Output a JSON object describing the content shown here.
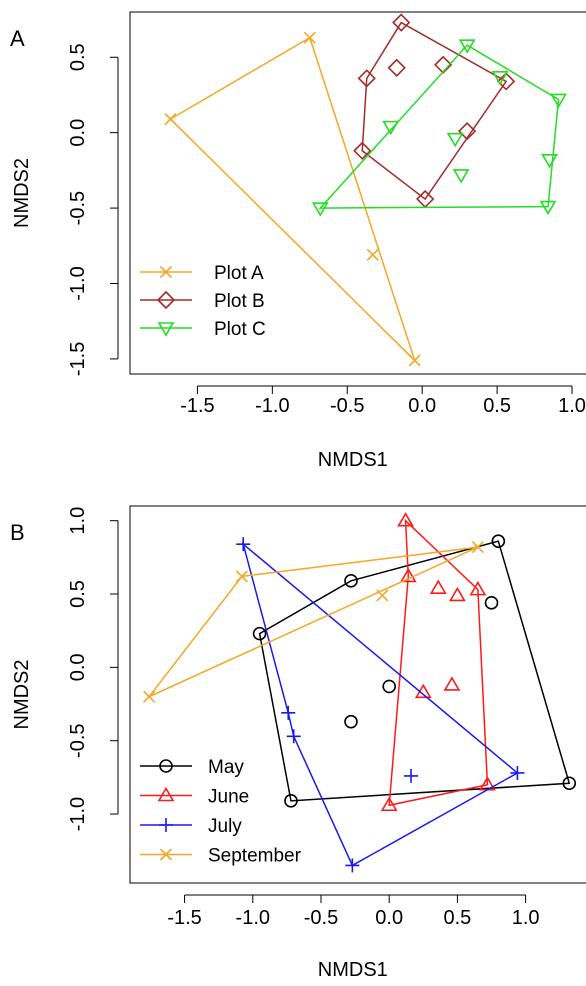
{
  "chart_data": [
    {
      "panel_label": "A",
      "type": "scatter",
      "xlabel": "NMDS1",
      "ylabel": "NMDS2",
      "xlim": [
        -1.95,
        1.1
      ],
      "ylim": [
        -1.6,
        0.8
      ],
      "xticks": [
        -1.5,
        -1.0,
        -0.5,
        0.0,
        0.5,
        1.0
      ],
      "yticks": [
        -1.5,
        -1.0,
        -0.5,
        0.0,
        0.5
      ],
      "xtick_labels": [
        "-1.5",
        "-1.0",
        "-0.5",
        "0.0",
        "0.5",
        "1.0"
      ],
      "ytick_labels": [
        "-1.5",
        "-1.0",
        "-0.5",
        "0.0",
        "0.5"
      ],
      "legend_position": "bottom-left",
      "series": [
        {
          "name": "Plot A",
          "color": "#f5a623",
          "marker": "x-cross",
          "points": [
            [
              -0.75,
              0.63
            ],
            [
              -1.68,
              0.09
            ],
            [
              -0.05,
              -1.51
            ],
            [
              -0.33,
              -0.81
            ]
          ],
          "hull": [
            [
              -0.75,
              0.63
            ],
            [
              -1.68,
              0.09
            ],
            [
              -0.05,
              -1.51
            ]
          ]
        },
        {
          "name": "Plot B",
          "color": "#a52a2a",
          "marker": "diamond",
          "points": [
            [
              -0.14,
              0.73
            ],
            [
              -0.37,
              0.36
            ],
            [
              -0.17,
              0.43
            ],
            [
              0.14,
              0.45
            ],
            [
              0.56,
              0.34
            ],
            [
              0.3,
              0.01
            ],
            [
              -0.4,
              -0.12
            ],
            [
              0.02,
              -0.44
            ]
          ],
          "hull": [
            [
              -0.14,
              0.73
            ],
            [
              0.56,
              0.34
            ],
            [
              0.02,
              -0.44
            ],
            [
              -0.4,
              -0.12
            ],
            [
              -0.37,
              0.36
            ]
          ]
        },
        {
          "name": "Plot C",
          "color": "#22dd22",
          "marker": "triangle-down",
          "points": [
            [
              0.3,
              0.58
            ],
            [
              0.52,
              0.37
            ],
            [
              0.91,
              0.22
            ],
            [
              -0.21,
              0.04
            ],
            [
              0.22,
              -0.04
            ],
            [
              0.85,
              -0.18
            ],
            [
              0.26,
              -0.28
            ],
            [
              0.84,
              -0.49
            ],
            [
              -0.68,
              -0.5
            ]
          ],
          "hull": [
            [
              0.3,
              0.58
            ],
            [
              0.91,
              0.22
            ],
            [
              0.84,
              -0.49
            ],
            [
              -0.68,
              -0.5
            ]
          ]
        }
      ]
    },
    {
      "panel_label": "B",
      "type": "scatter",
      "xlabel": "NMDS1",
      "ylabel": "NMDS2",
      "xlim": [
        -1.9,
        1.45
      ],
      "ylim": [
        -1.47,
        1.1
      ],
      "xticks": [
        -1.5,
        -1.0,
        -0.5,
        0.0,
        0.5,
        1.0
      ],
      "yticks": [
        -1.0,
        -0.5,
        0.0,
        0.5,
        1.0
      ],
      "xtick_labels": [
        "-1.5",
        "-1.0",
        "-0.5",
        "0.0",
        "0.5",
        "1.0"
      ],
      "ytick_labels": [
        "-1.0",
        "-0.5",
        "0.0",
        "0.5",
        "1.0"
      ],
      "legend_position": "bottom-left",
      "series": [
        {
          "name": "May",
          "color": "#000000",
          "marker": "circle",
          "points": [
            [
              0.8,
              0.86
            ],
            [
              -0.28,
              0.59
            ],
            [
              -0.95,
              0.23
            ],
            [
              0.75,
              0.44
            ],
            [
              0.0,
              -0.13
            ],
            [
              -0.28,
              -0.37
            ],
            [
              -0.72,
              -0.91
            ],
            [
              1.32,
              -0.79
            ]
          ],
          "hull": [
            [
              0.8,
              0.86
            ],
            [
              1.32,
              -0.79
            ],
            [
              -0.72,
              -0.91
            ],
            [
              -0.95,
              0.23
            ],
            [
              -0.28,
              0.59
            ]
          ]
        },
        {
          "name": "June",
          "color": "#ff1a1a",
          "marker": "triangle-up",
          "points": [
            [
              0.12,
              1.0
            ],
            [
              0.14,
              0.62
            ],
            [
              0.36,
              0.54
            ],
            [
              0.5,
              0.49
            ],
            [
              0.65,
              0.53
            ],
            [
              0.25,
              -0.17
            ],
            [
              0.46,
              -0.12
            ],
            [
              0.72,
              -0.8
            ],
            [
              0.0,
              -0.94
            ]
          ],
          "hull": [
            [
              0.12,
              1.0
            ],
            [
              0.65,
              0.53
            ],
            [
              0.72,
              -0.8
            ],
            [
              0.0,
              -0.94
            ],
            [
              0.14,
              0.62
            ]
          ]
        },
        {
          "name": "July",
          "color": "#1a1aee",
          "marker": "plus",
          "points": [
            [
              -1.07,
              0.84
            ],
            [
              -0.74,
              -0.31
            ],
            [
              -0.7,
              -0.47
            ],
            [
              0.16,
              -0.74
            ],
            [
              0.94,
              -0.72
            ],
            [
              -0.27,
              -1.35
            ]
          ],
          "hull": [
            [
              -1.07,
              0.84
            ],
            [
              0.94,
              -0.72
            ],
            [
              -0.27,
              -1.35
            ],
            [
              -0.7,
              -0.47
            ],
            [
              -0.74,
              -0.31
            ]
          ]
        },
        {
          "name": "September",
          "color": "#f5a623",
          "marker": "x-cross",
          "points": [
            [
              -1.08,
              0.62
            ],
            [
              0.65,
              0.82
            ],
            [
              -0.05,
              0.49
            ],
            [
              -1.76,
              -0.2
            ]
          ],
          "hull": [
            [
              -1.08,
              0.62
            ],
            [
              0.65,
              0.82
            ],
            [
              -1.76,
              -0.2
            ]
          ]
        }
      ]
    }
  ]
}
